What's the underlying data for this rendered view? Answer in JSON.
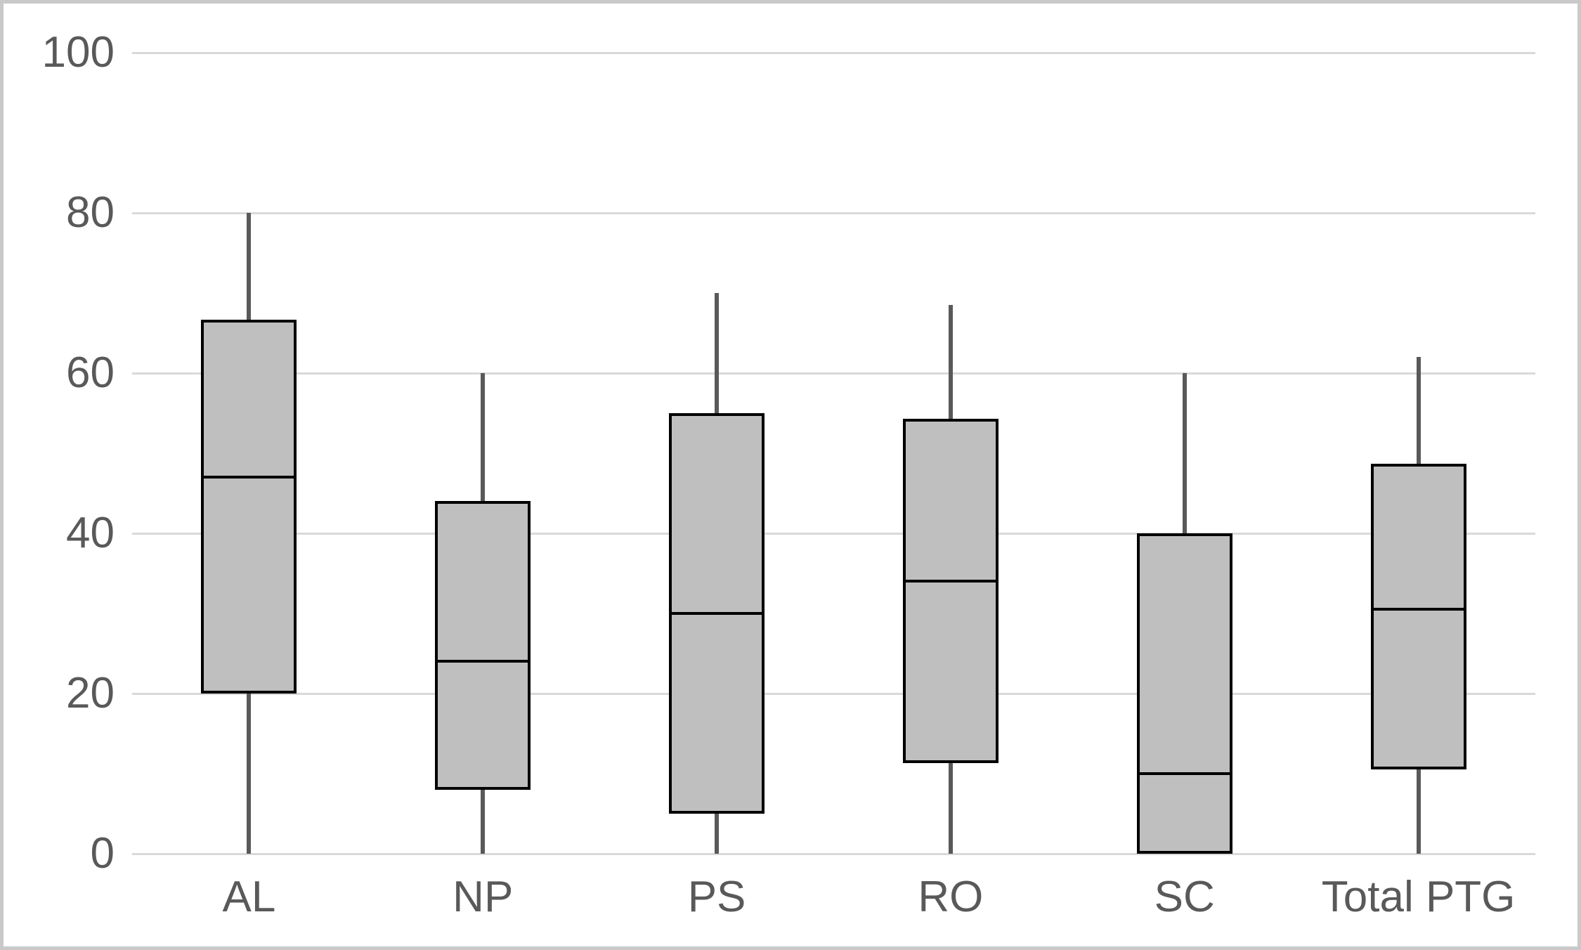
{
  "chart_data": {
    "type": "boxplot",
    "title": "",
    "xlabel": "",
    "ylabel": "",
    "categories": [
      "AL",
      "NP",
      "PS",
      "RO",
      "SC",
      "Total PTG"
    ],
    "yticks": [
      0,
      20,
      40,
      60,
      80,
      100
    ],
    "ylim": [
      0,
      100
    ],
    "grid": true,
    "legend": "none",
    "boxes": [
      {
        "category": "AL",
        "min": 0,
        "q1": 20,
        "median": 47,
        "q3": 66.7,
        "max": 80
      },
      {
        "category": "NP",
        "min": 0,
        "q1": 8,
        "median": 24,
        "q3": 44,
        "max": 60
      },
      {
        "category": "PS",
        "min": 0,
        "q1": 5,
        "median": 30,
        "q3": 55,
        "max": 70
      },
      {
        "category": "RO",
        "min": 0,
        "q1": 11.3,
        "median": 34,
        "q3": 54.3,
        "max": 68.5
      },
      {
        "category": "SC",
        "min": 0,
        "q1": 0,
        "median": 10,
        "q3": 40,
        "max": 60
      },
      {
        "category": "Total PTG",
        "min": 0,
        "q1": 10.5,
        "median": 30.5,
        "q3": 48.7,
        "max": 62
      }
    ]
  },
  "colors": {
    "box_fill": "#bfbfbf",
    "box_border": "#000000",
    "median_line": "#000000",
    "whisker": "#595959",
    "gridline": "#d9d9d9",
    "tick_label": "#595959",
    "frame": "#c9c9c9",
    "background": "#ffffff"
  }
}
